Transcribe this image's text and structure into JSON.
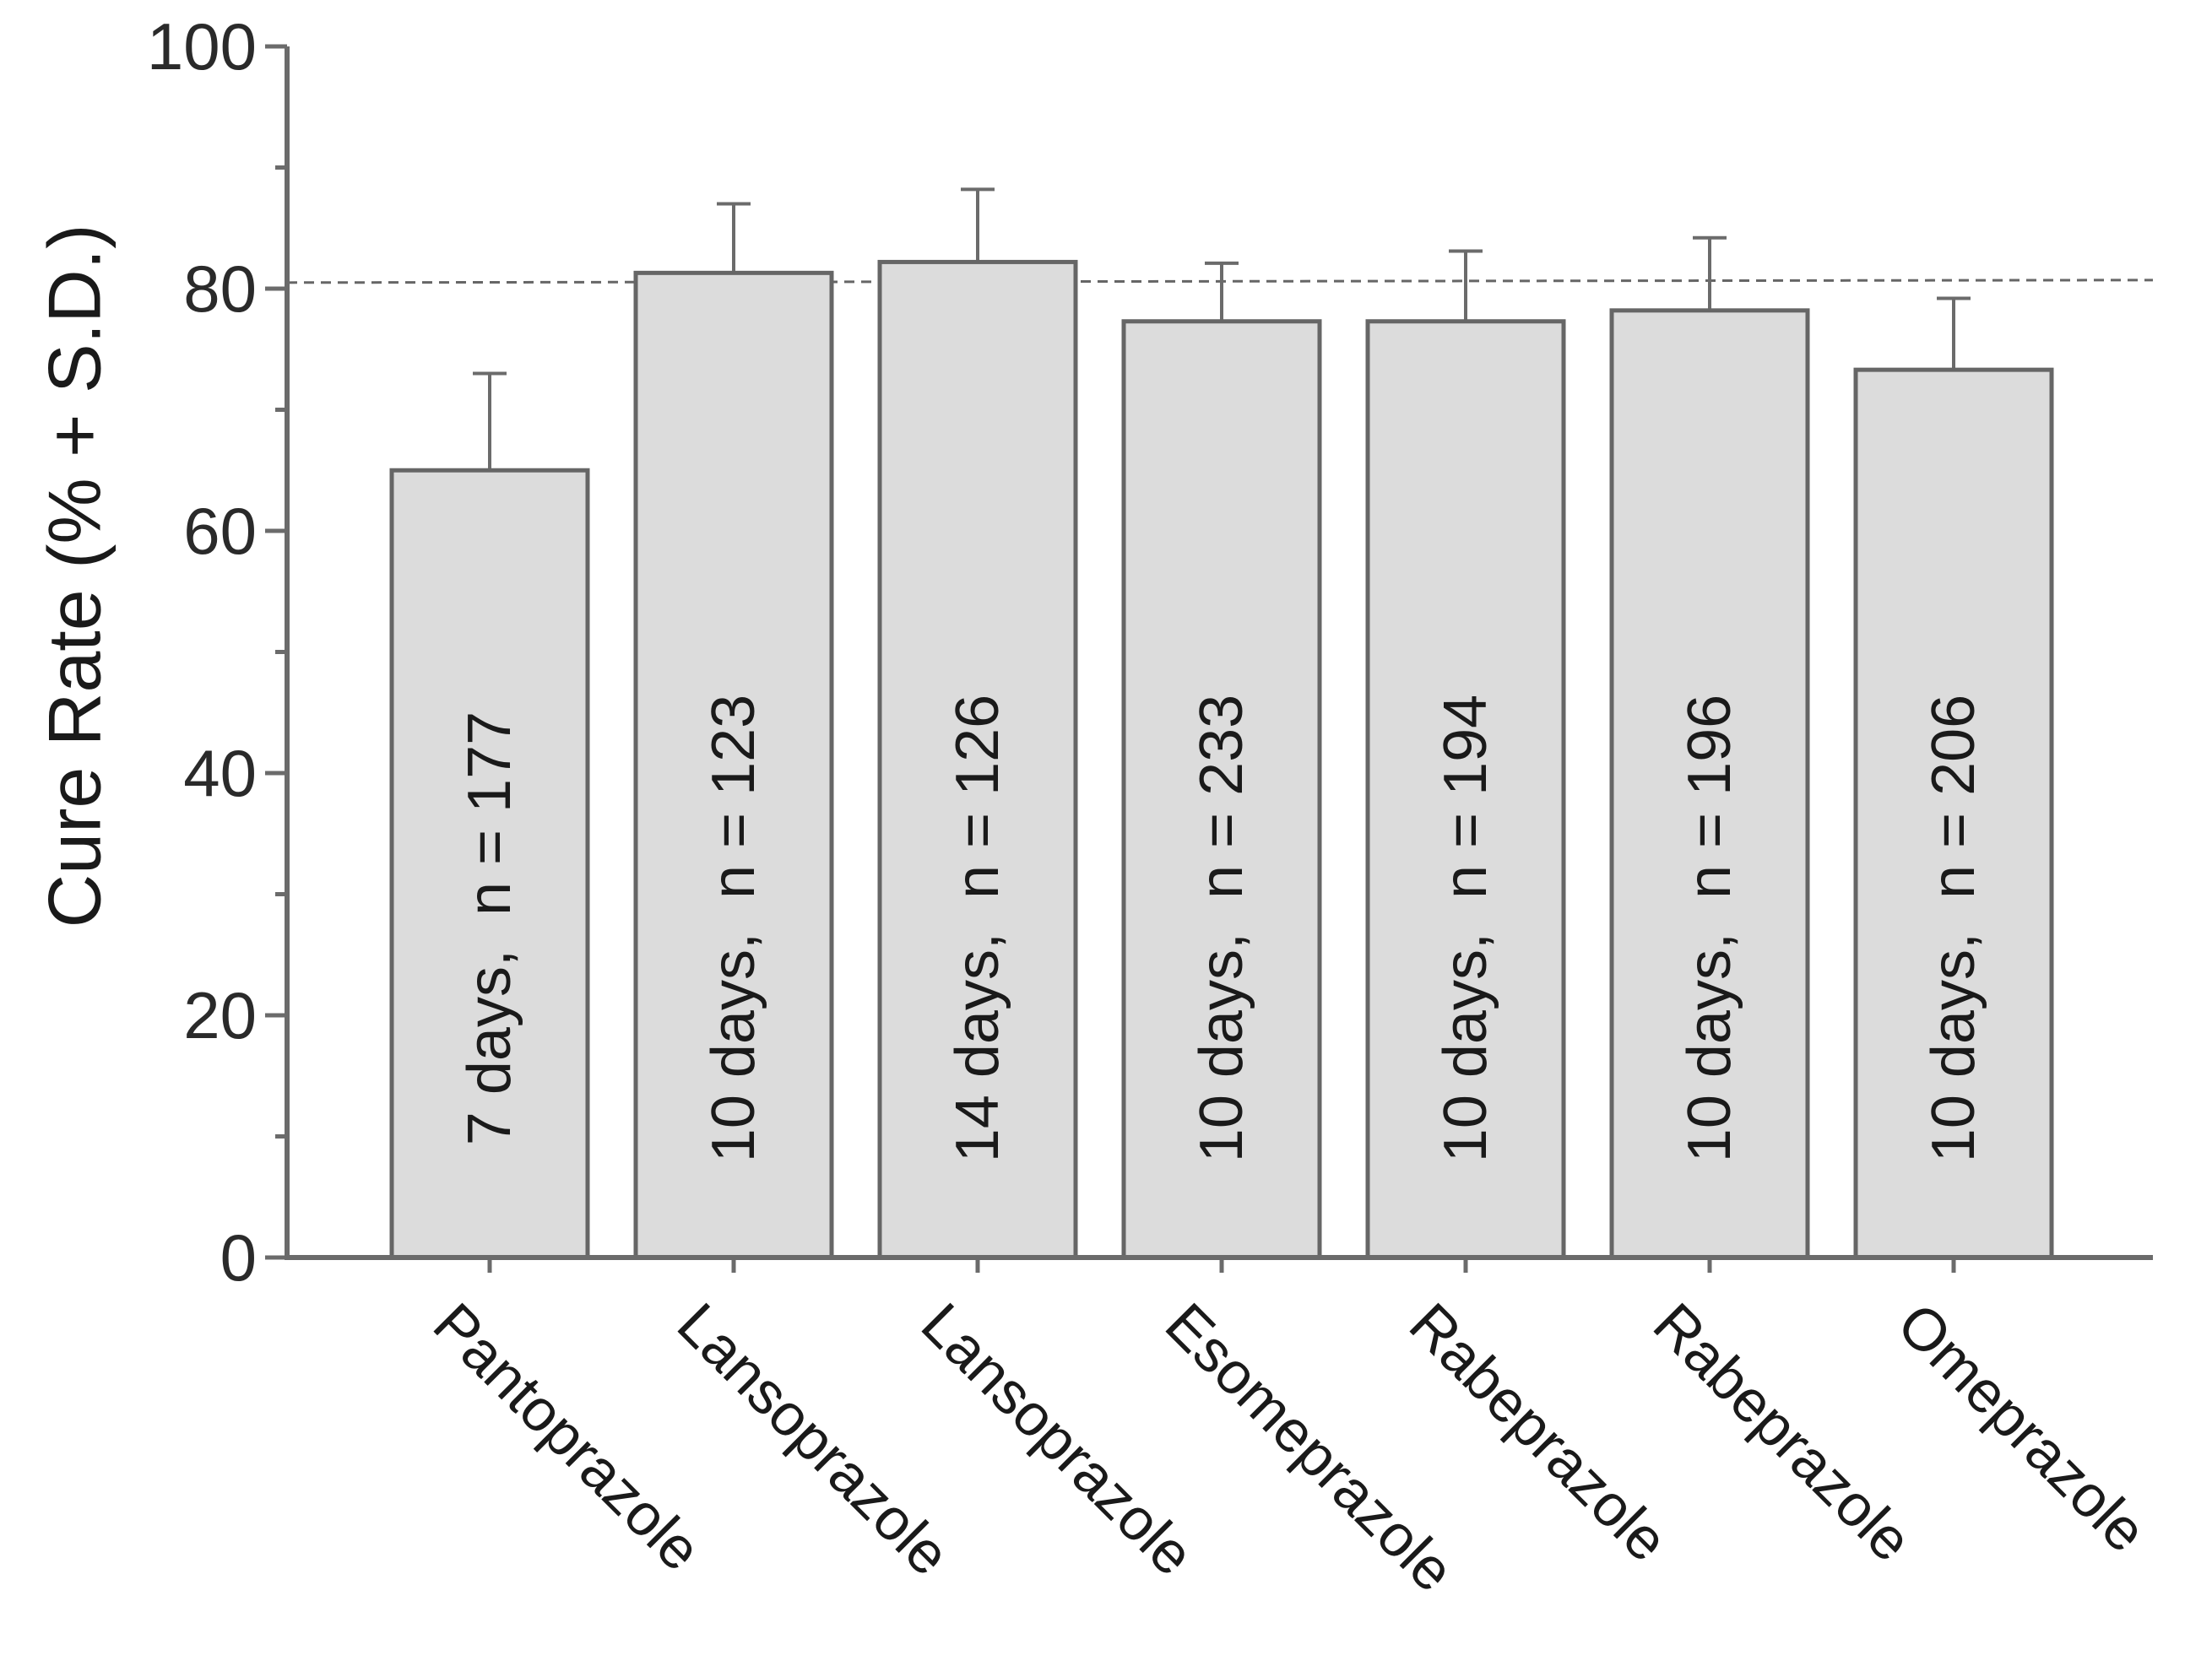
{
  "chart_data": {
    "type": "bar",
    "ylabel": "Cure Rate (% + S.D.)",
    "xlabel": "",
    "title": "",
    "ylim": [
      0,
      100
    ],
    "yticks": [
      0,
      20,
      40,
      60,
      80,
      100
    ],
    "minor_yticks": [
      10,
      30,
      50,
      70,
      90
    ],
    "grid": false,
    "legend": "none",
    "reference_line": {
      "value": 80.5,
      "style": "dashed"
    },
    "bar_color": "#dcdcdc",
    "bar_edge_color": "#666666",
    "categories": [
      "Pantoprazole",
      "Lansoprazole",
      "Lansoprazole",
      "Esomeprazole",
      "Rabeprazole",
      "Rabeprazole",
      "Omeprazole"
    ],
    "values": [
      65,
      81.3,
      82.2,
      77.3,
      77.3,
      78.2,
      73.3
    ],
    "error_upper": [
      8,
      5.7,
      6.0,
      4.8,
      5.8,
      6.0,
      5.9
    ],
    "bar_labels": [
      "7 days,  n = 177",
      "10 days,  n = 123",
      "14 days,  n = 126",
      "10 days,  n = 233",
      "10 days,  n = 194",
      "10 days,  n = 196",
      "10 days,  n = 206"
    ]
  }
}
